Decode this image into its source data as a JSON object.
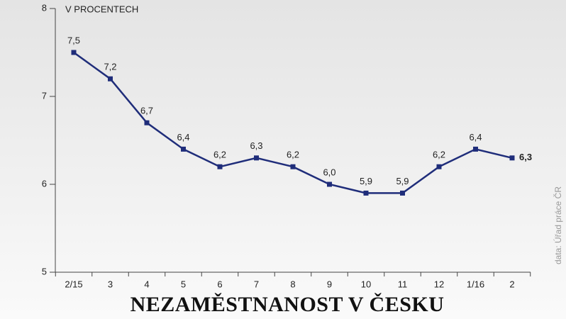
{
  "chart_data": {
    "type": "line",
    "title": "NEZAMĚSTNANOST V ČESKU",
    "y_axis_label": "V PROCENTECH",
    "source": "data: Úřad práce ČR",
    "categories": [
      "2/15",
      "3",
      "4",
      "5",
      "6",
      "7",
      "8",
      "9",
      "10",
      "11",
      "12",
      "1/16",
      "2"
    ],
    "values": [
      7.5,
      7.2,
      6.7,
      6.4,
      6.2,
      6.3,
      6.2,
      6.0,
      5.9,
      5.9,
      6.2,
      6.4,
      6.3
    ],
    "value_labels": [
      "7,5",
      "7,2",
      "6,7",
      "6,4",
      "6,2",
      "6,3",
      "6,2",
      "6,0",
      "5,9",
      "5,9",
      "6,2",
      "6,4",
      "6,3"
    ],
    "color": "#1f2d7a",
    "ylim": [
      5,
      8
    ],
    "yticks": [
      5,
      6,
      7,
      8
    ]
  }
}
